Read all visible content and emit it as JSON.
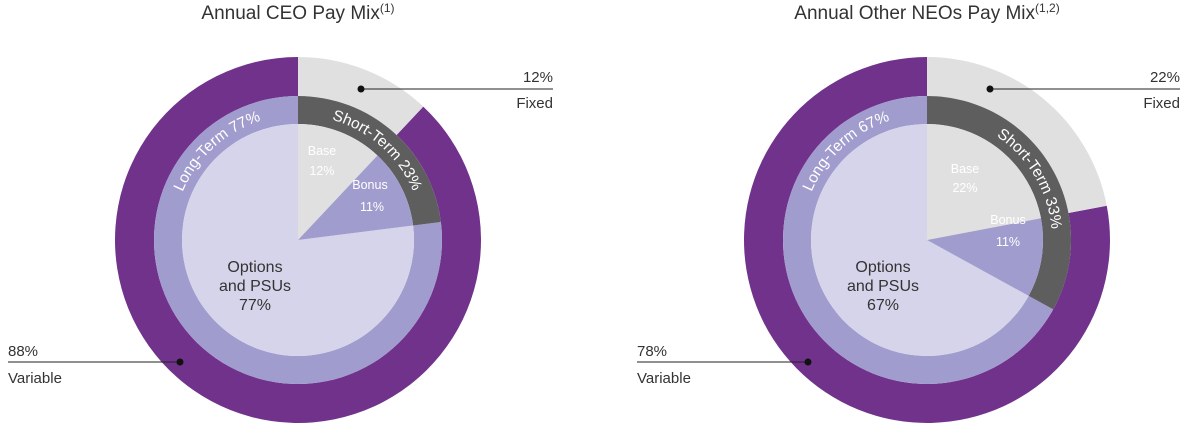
{
  "colors": {
    "variable": "#71328c",
    "fixed_outer": "#e0e0e0",
    "long_term": "#a09ccd",
    "short_term": "#5e5e5e",
    "base": "#e0e0e0",
    "bonus": "#a09ccd",
    "options_psus": "#d6d4ea",
    "callout_line": "#222222"
  },
  "chart_data": [
    {
      "type": "pie",
      "title": "Annual CEO Pay Mix",
      "title_note": "(1)",
      "outer_ring": [
        {
          "name": "Fixed",
          "value": 12,
          "label": "12%"
        },
        {
          "name": "Variable",
          "value": 88,
          "label": "88%"
        }
      ],
      "middle_ring": [
        {
          "name": "Short-Term",
          "value": 23,
          "label": "Short-Term 23%"
        },
        {
          "name": "Long-Term",
          "value": 77,
          "label": "Long-Term 77%"
        }
      ],
      "inner_pie": [
        {
          "name": "Base",
          "value": 12,
          "label": "12%"
        },
        {
          "name": "Bonus",
          "value": 11,
          "label": "11%"
        },
        {
          "name": "Options and PSUs",
          "value": 77,
          "label_line1": "Options",
          "label_line2": "and PSUs",
          "label": "77%"
        }
      ],
      "callouts": {
        "fixed": {
          "value": "12%",
          "label": "Fixed"
        },
        "variable": {
          "value": "88%",
          "label": "Variable"
        }
      }
    },
    {
      "type": "pie",
      "title": "Annual Other NEOs Pay Mix",
      "title_note": "(1,2)",
      "outer_ring": [
        {
          "name": "Fixed",
          "value": 22,
          "label": "22%"
        },
        {
          "name": "Variable",
          "value": 78,
          "label": "78%"
        }
      ],
      "middle_ring": [
        {
          "name": "Short-Term",
          "value": 33,
          "label": "Short-Term 33%"
        },
        {
          "name": "Long-Term",
          "value": 67,
          "label": "Long-Term 67%"
        }
      ],
      "inner_pie": [
        {
          "name": "Base",
          "value": 22,
          "label": "22%"
        },
        {
          "name": "Bonus",
          "value": 11,
          "label": "11%"
        },
        {
          "name": "Options and PSUs",
          "value": 67,
          "label_line1": "Options",
          "label_line2": "and PSUs",
          "label": "67%"
        }
      ],
      "callouts": {
        "fixed": {
          "value": "22%",
          "label": "Fixed"
        },
        "variable": {
          "value": "78%",
          "label": "Variable"
        }
      }
    }
  ]
}
